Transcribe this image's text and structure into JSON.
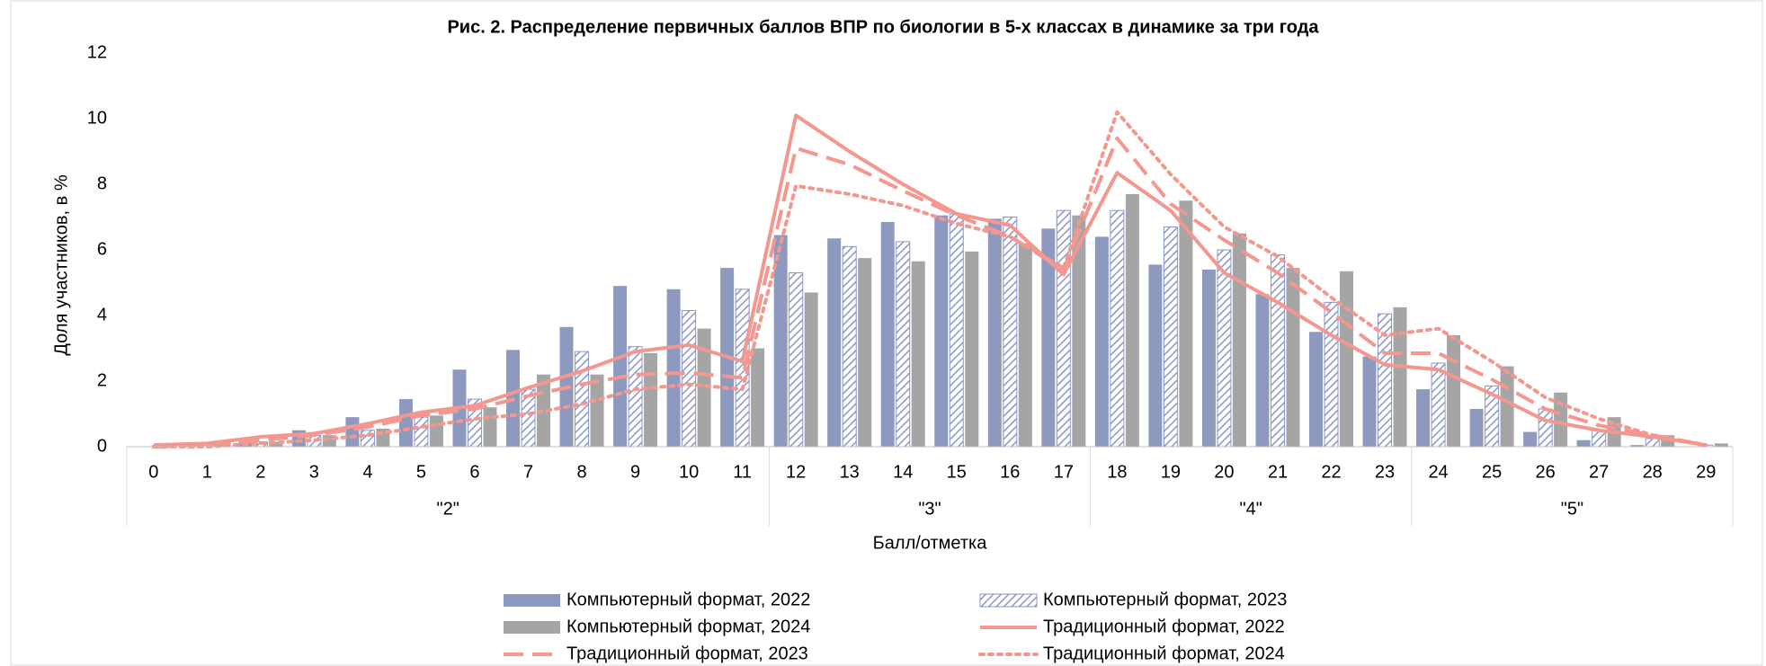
{
  "chart_data": {
    "type": "bar_line",
    "title": "Рис. 2. Распределение первичных баллов ВПР по биологии в 5-х классах в динамике за три года",
    "y_label": "Доля участников, в %",
    "x_label": "Балл/отметка",
    "categories": [
      "0",
      "1",
      "2",
      "3",
      "4",
      "5",
      "6",
      "7",
      "8",
      "9",
      "10",
      "11",
      "12",
      "13",
      "14",
      "15",
      "16",
      "17",
      "18",
      "19",
      "20",
      "21",
      "22",
      "23",
      "24",
      "25",
      "26",
      "27",
      "28",
      "29"
    ],
    "category_groups": [
      "\"2\"",
      "\"2\"",
      "\"2\"",
      "\"2\"",
      "\"2\"",
      "\"2\"",
      "\"2\"",
      "\"2\"",
      "\"2\"",
      "\"2\"",
      "\"2\"",
      "\"2\"",
      "\"3\"",
      "\"3\"",
      "\"3\"",
      "\"3\"",
      "\"3\"",
      "\"3\"",
      "\"4\"",
      "\"4\"",
      "\"4\"",
      "\"4\"",
      "\"4\"",
      "\"4\"",
      "\"5\"",
      "\"5\"",
      "\"5\"",
      "\"5\"",
      "\"5\"",
      "\"5\""
    ],
    "ylim": [
      0,
      12
    ],
    "yticks": [
      0,
      2,
      4,
      6,
      8,
      10,
      12
    ],
    "grid": false,
    "series": [
      {
        "name": "Компьютерный формат, 2022",
        "kind": "bar",
        "style": "solid",
        "color": "#8e99c0",
        "values": [
          0,
          0.05,
          0.15,
          0.5,
          0.9,
          1.45,
          2.35,
          2.95,
          3.65,
          4.9,
          4.8,
          5.45,
          6.45,
          6.35,
          6.85,
          7.05,
          6.95,
          6.65,
          6.4,
          5.55,
          5.4,
          4.65,
          3.5,
          2.75,
          1.75,
          1.15,
          0.45,
          0.2,
          0.05,
          0
        ]
      },
      {
        "name": "Компьютерный формат, 2023",
        "kind": "bar",
        "style": "hatch",
        "color": "#8a96c8",
        "values": [
          0,
          0.05,
          0.15,
          0.35,
          0.5,
          0.9,
          1.45,
          1.75,
          2.9,
          3.05,
          4.15,
          4.8,
          5.3,
          6.1,
          6.25,
          7.1,
          7.0,
          7.2,
          7.2,
          6.7,
          6.0,
          5.85,
          4.4,
          4.05,
          2.55,
          1.85,
          1.15,
          0.5,
          0.25,
          0.05
        ]
      },
      {
        "name": "Компьютерный формат, 2024",
        "kind": "bar",
        "style": "solid",
        "color": "#a5a5a5",
        "values": [
          0,
          0.05,
          0.15,
          0.35,
          0.55,
          0.95,
          1.2,
          2.2,
          2.2,
          2.85,
          3.6,
          3.0,
          4.7,
          5.75,
          5.65,
          5.95,
          6.2,
          7.05,
          7.7,
          7.5,
          6.5,
          5.45,
          5.35,
          4.25,
          3.4,
          2.45,
          1.65,
          0.9,
          0.35,
          0.1
        ]
      },
      {
        "name": "Традиционный формат, 2022",
        "kind": "line",
        "style": "solid",
        "color": "#f4978e",
        "values": [
          0.05,
          0.1,
          0.3,
          0.4,
          0.7,
          1.05,
          1.25,
          1.8,
          2.3,
          2.9,
          3.1,
          2.6,
          10.1,
          9.0,
          8.0,
          7.1,
          6.75,
          5.25,
          8.35,
          7.2,
          5.3,
          4.4,
          3.4,
          2.5,
          2.35,
          1.6,
          0.8,
          0.5,
          0.3,
          0.05
        ]
      },
      {
        "name": "Традиционный формат, 2023",
        "kind": "line",
        "style": "dashed",
        "color": "#f4978e",
        "values": [
          0,
          0.05,
          0.2,
          0.35,
          0.6,
          0.95,
          1.15,
          1.55,
          1.9,
          2.2,
          2.25,
          2.1,
          9.1,
          8.6,
          7.8,
          7.05,
          6.4,
          5.4,
          9.4,
          7.4,
          6.3,
          5.3,
          4.1,
          2.85,
          2.85,
          2.05,
          1.15,
          0.65,
          0.35,
          0.05
        ]
      },
      {
        "name": "Традиционный формат, 2024",
        "kind": "line",
        "style": "dotted",
        "color": "#f4978e",
        "values": [
          0,
          0,
          0.1,
          0.2,
          0.35,
          0.6,
          0.85,
          1.0,
          1.3,
          1.75,
          1.9,
          1.75,
          7.95,
          7.7,
          7.35,
          6.8,
          6.4,
          5.45,
          10.2,
          8.3,
          6.7,
          5.8,
          4.55,
          3.4,
          3.6,
          2.6,
          1.5,
          0.85,
          0.35,
          0.05
        ]
      }
    ]
  }
}
